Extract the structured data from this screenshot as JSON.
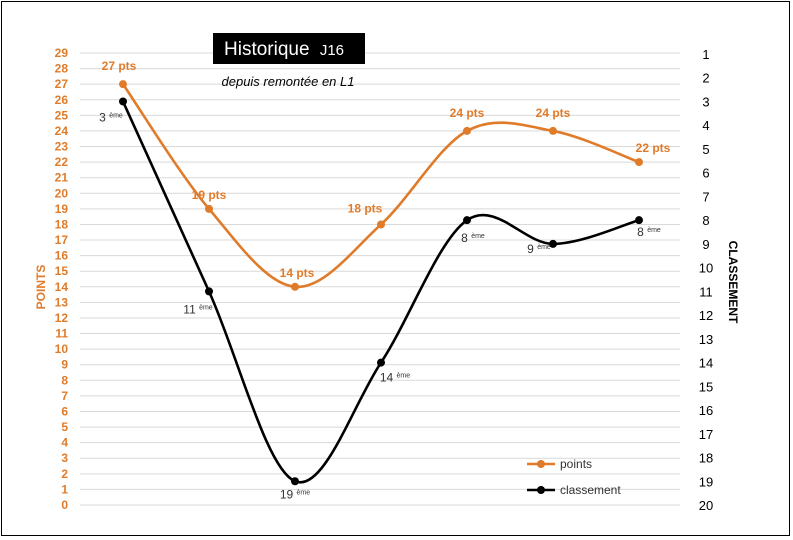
{
  "chart_data": {
    "type": "line",
    "title": "Historique",
    "title_suffix": "J16",
    "subtitle": "depuis remontée en L1",
    "x": [
      1,
      2,
      3,
      4,
      5,
      6,
      7
    ],
    "y_left": {
      "label": "POINTS",
      "range": [
        0,
        29
      ],
      "ticks": [
        0,
        1,
        2,
        3,
        4,
        5,
        6,
        7,
        8,
        9,
        10,
        11,
        12,
        13,
        14,
        15,
        16,
        17,
        18,
        19,
        20,
        21,
        22,
        23,
        24,
        25,
        26,
        27,
        28,
        29
      ]
    },
    "y_right": {
      "label": "CLASSEMENT",
      "range": [
        1,
        20
      ],
      "inverted": true,
      "ticks": [
        1,
        2,
        3,
        4,
        5,
        6,
        7,
        8,
        9,
        10,
        11,
        12,
        13,
        14,
        15,
        16,
        17,
        18,
        19,
        20
      ]
    },
    "series": [
      {
        "name": "points",
        "axis": "left",
        "color": "#e07b2a",
        "values": [
          27,
          19,
          14,
          18,
          24,
          24,
          22
        ],
        "labels": [
          "27 pts",
          "19 pts",
          "14 pts",
          "18 pts",
          "24 pts",
          "24 pts",
          "22 pts"
        ]
      },
      {
        "name": "classement",
        "axis": "right",
        "color": "#000000",
        "values": [
          3,
          11,
          19,
          14,
          8,
          9,
          8
        ],
        "labels": [
          "3",
          "11",
          "19",
          "14",
          "8",
          "9",
          "8"
        ],
        "label_suffix": "ème"
      }
    ],
    "legend_position": "bottom-right",
    "grid": true
  }
}
